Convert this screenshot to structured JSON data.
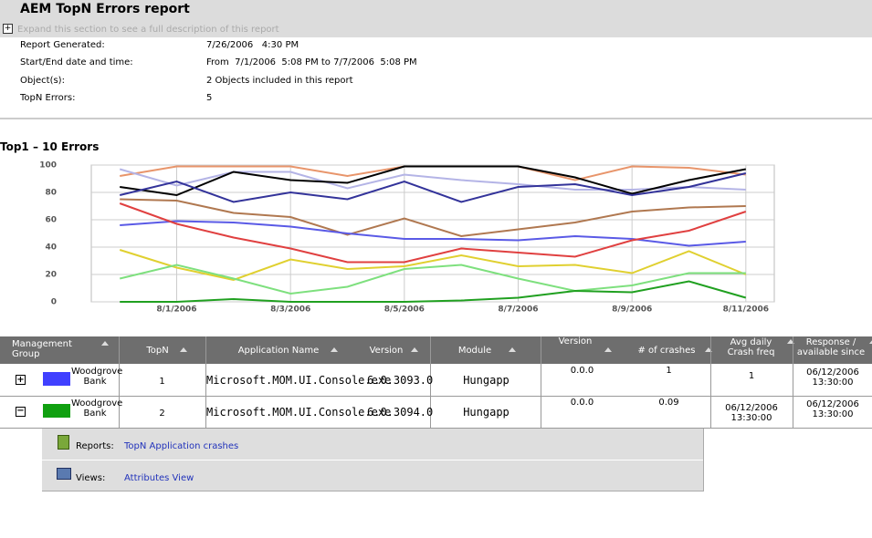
{
  "header": {
    "title": "AEM TopN Errors report",
    "expand_text": "Expand this section to see a full description of this report"
  },
  "info": [
    {
      "label": "Report Generated:",
      "value": "7/26/2006   4:30 PM"
    },
    {
      "label": "Start/End date and time:",
      "value": "From  7/1/2006  5:08 PM to 7/7/2006  5:08 PM"
    },
    {
      "label": "Object(s):",
      "value": "2 Objects included in this report"
    },
    {
      "label": "TopN Errors:",
      "value": "5"
    }
  ],
  "chart_data": {
    "type": "line",
    "title": "Top1 – 10 Errors",
    "categories": [
      null,
      "8/1/2006",
      null,
      "8/3/2006",
      null,
      "8/5/2006",
      null,
      "8/7/2006",
      null,
      "8/9/2006",
      null,
      "8/11/2006"
    ],
    "series": [
      {
        "color": "#e8956b",
        "values": [
          92,
          99,
          99,
          99,
          92,
          99,
          99,
          99,
          89,
          99,
          98,
          93
        ]
      },
      {
        "color": "#b4b4e6",
        "values": [
          97,
          85,
          95,
          95,
          83,
          93,
          89,
          86,
          82,
          82,
          84,
          82
        ]
      },
      {
        "color": "#000000",
        "values": [
          84,
          78,
          95,
          89,
          87,
          99,
          99,
          99,
          91,
          79,
          89,
          97
        ]
      },
      {
        "color": "#33339a",
        "values": [
          78,
          88,
          73,
          80,
          75,
          88,
          73,
          84,
          86,
          78,
          84,
          94
        ]
      },
      {
        "color": "#b07850",
        "values": [
          75,
          74,
          65,
          62,
          49,
          61,
          48,
          53,
          58,
          66,
          69,
          70
        ]
      },
      {
        "color": "#5a5ae6",
        "values": [
          56,
          59,
          58,
          55,
          50,
          46,
          46,
          45,
          48,
          46,
          41,
          44
        ]
      },
      {
        "color": "#e04040",
        "values": [
          72,
          57,
          47,
          39,
          29,
          29,
          39,
          36,
          33,
          45,
          52,
          66
        ]
      },
      {
        "color": "#e0d030",
        "values": [
          38,
          25,
          16,
          31,
          24,
          26,
          34,
          26,
          27,
          21,
          37,
          20
        ]
      },
      {
        "color": "#7ee07e",
        "values": [
          17,
          27,
          17,
          6,
          11,
          24,
          27,
          17,
          8,
          12,
          21,
          21
        ]
      },
      {
        "color": "#20a020",
        "values": [
          0,
          0,
          2,
          0,
          0,
          0,
          1,
          3,
          8,
          7,
          15,
          3
        ]
      }
    ],
    "ylim": [
      0,
      100
    ],
    "yticks": [
      0,
      20,
      40,
      60,
      80,
      100
    ],
    "grid": true
  },
  "table": {
    "headers": [
      "Management Group",
      "TopN",
      "Application Name",
      "Version",
      "Module",
      "Version",
      "# of crashes",
      "Avg daily Crash freq",
      "Response / available since"
    ],
    "swatch_colors": [
      "#4040ff",
      "#10a010"
    ],
    "rows": [
      [
        "Woodgrove Bank",
        "1",
        "Microsoft.MOM.UI.Console.exe",
        "6.0.3093.0",
        "Hungapp",
        "0.0.0",
        "1",
        "1",
        "06/12/2006 13:30:00"
      ],
      [
        "Woodgrove Bank",
        "2",
        "Microsoft.MOM.UI.Console.exe",
        "6.0.3094.0",
        "Hungapp",
        "0.0.0",
        "0.09",
        "06/12/2006 13:30:00",
        "06/12/2006 13:30:00"
      ]
    ]
  },
  "links": [
    {
      "label": "Reports:",
      "link": "TopN Application crashes"
    },
    {
      "label": "Views:",
      "link": "Attributes View"
    }
  ]
}
